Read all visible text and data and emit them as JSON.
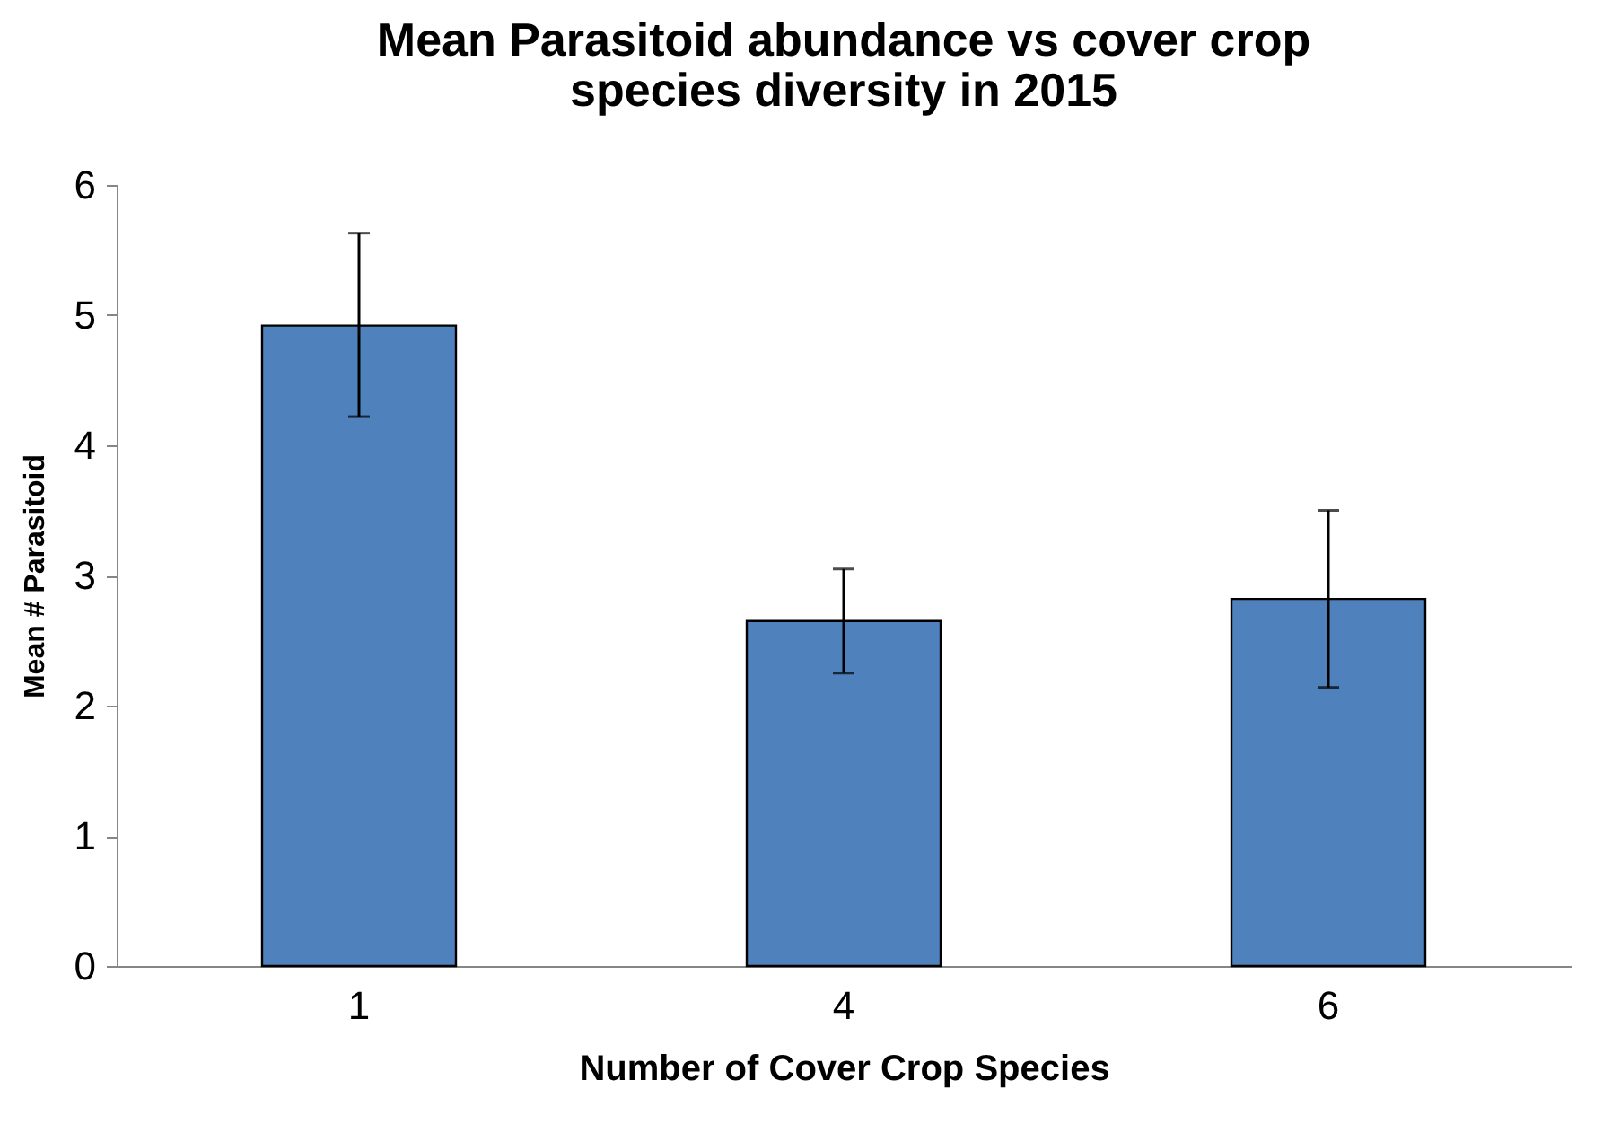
{
  "chart_data": {
    "type": "bar",
    "title": [
      "Mean  Parasitoid abundance vs cover crop",
      "species diversity in 2015"
    ],
    "xlabel": "Number of  Cover Crop Species",
    "ylabel": "Mean # Parasitoid",
    "categories": [
      "1",
      "4",
      "6"
    ],
    "values": [
      4.92,
      2.65,
      2.82
    ],
    "errors": [
      [
        4.22,
        5.63
      ],
      [
        2.25,
        3.05
      ],
      [
        2.14,
        3.5
      ]
    ],
    "color": "#4f81bd",
    "ylim": [
      0,
      6
    ],
    "yticks": [
      0,
      1,
      2,
      3,
      4,
      5,
      6
    ],
    "grid": false
  }
}
